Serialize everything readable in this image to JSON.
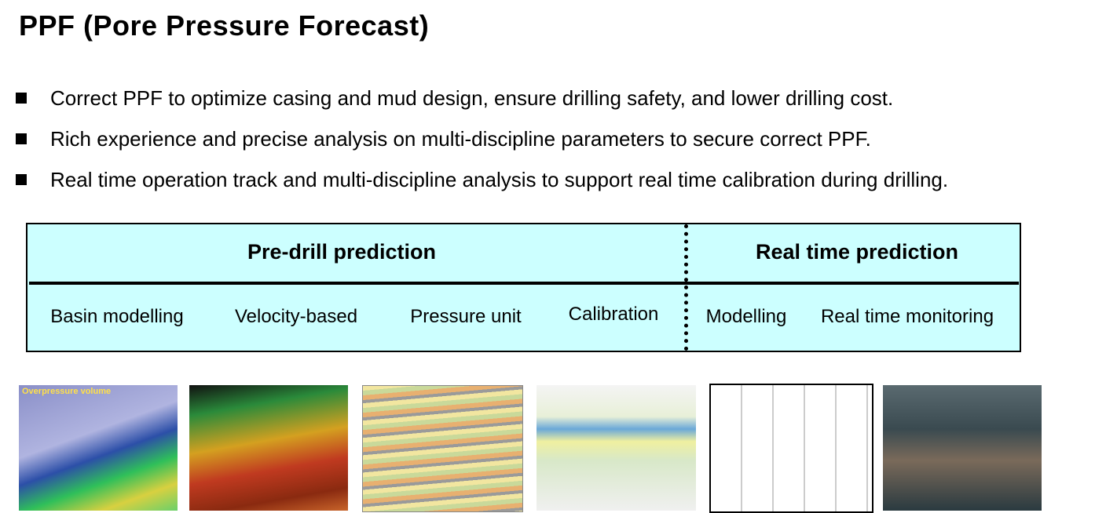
{
  "header": {
    "title": "PPF (Pore Pressure Forecast)"
  },
  "bullets": [
    "Correct PPF to optimize casing and mud design, ensure drilling safety, and lower drilling cost.",
    "Rich experience and precise analysis on multi-discipline parameters to secure correct PPF.",
    "Real time operation track and multi-discipline analysis to support real time calibration during drilling."
  ],
  "table": {
    "headers": [
      "Pre-drill prediction",
      "Real time prediction"
    ],
    "pre_drill_items": [
      "Basin modelling",
      "Velocity-based",
      "Pressure unit",
      "Calibration"
    ],
    "real_time_items": [
      "Modelling",
      "Real time monitoring"
    ]
  },
  "images": {
    "overpressure_label": "Overpressure volume"
  }
}
